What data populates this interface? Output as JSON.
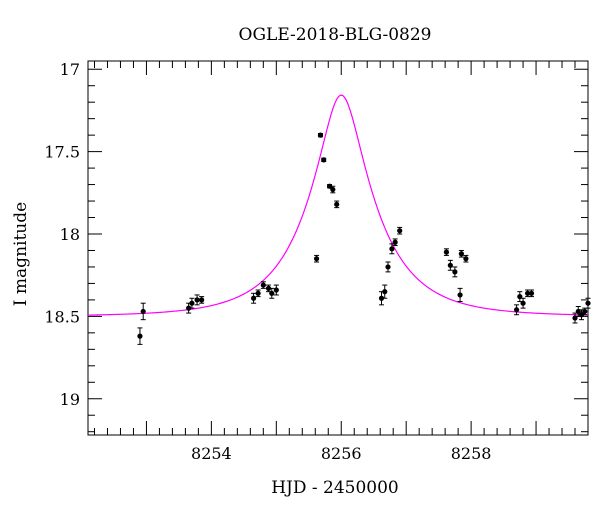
{
  "chart_data": {
    "type": "scatter",
    "title": "OGLE-2018-BLG-0829",
    "xlabel": "HJD - 2450000",
    "ylabel": "I magnitude",
    "xlim": [
      8252.1,
      8259.8
    ],
    "ylim": [
      19.22,
      16.95
    ],
    "y_inverted": true,
    "x_ticks": [
      8254,
      8256,
      8258
    ],
    "y_ticks": [
      17,
      17.5,
      18,
      18.5,
      19
    ],
    "y_tick_labels": [
      "17",
      "17.5",
      "18",
      "18.5",
      "19"
    ],
    "model_color": "#ff00ff",
    "model": {
      "t0": 8256.0,
      "u0": 0.3,
      "tE": 1.02,
      "i_base": 18.5
    },
    "points": [
      {
        "x": 8252.95,
        "y": 18.47,
        "err": 0.05
      },
      {
        "x": 8252.9,
        "y": 18.62,
        "err": 0.05
      },
      {
        "x": 8253.65,
        "y": 18.45,
        "err": 0.03
      },
      {
        "x": 8253.7,
        "y": 18.42,
        "err": 0.03
      },
      {
        "x": 8253.78,
        "y": 18.4,
        "err": 0.03
      },
      {
        "x": 8253.85,
        "y": 18.4,
        "err": 0.02
      },
      {
        "x": 8254.65,
        "y": 18.39,
        "err": 0.03
      },
      {
        "x": 8254.72,
        "y": 18.36,
        "err": 0.02
      },
      {
        "x": 8254.8,
        "y": 18.31,
        "err": 0.02
      },
      {
        "x": 8254.88,
        "y": 18.33,
        "err": 0.02
      },
      {
        "x": 8254.93,
        "y": 18.36,
        "err": 0.03
      },
      {
        "x": 8255.0,
        "y": 18.34,
        "err": 0.03
      },
      {
        "x": 8255.62,
        "y": 18.15,
        "err": 0.02
      },
      {
        "x": 8255.68,
        "y": 17.4,
        "err": 0.01
      },
      {
        "x": 8255.73,
        "y": 17.55,
        "err": 0.01
      },
      {
        "x": 8255.82,
        "y": 17.71,
        "err": 0.01
      },
      {
        "x": 8255.87,
        "y": 17.73,
        "err": 0.02
      },
      {
        "x": 8255.93,
        "y": 17.82,
        "err": 0.02
      },
      {
        "x": 8256.62,
        "y": 18.39,
        "err": 0.04
      },
      {
        "x": 8256.67,
        "y": 18.35,
        "err": 0.04
      },
      {
        "x": 8256.72,
        "y": 18.2,
        "err": 0.03
      },
      {
        "x": 8256.78,
        "y": 18.09,
        "err": 0.03
      },
      {
        "x": 8256.83,
        "y": 18.05,
        "err": 0.02
      },
      {
        "x": 8256.9,
        "y": 17.98,
        "err": 0.02
      },
      {
        "x": 8257.62,
        "y": 18.11,
        "err": 0.02
      },
      {
        "x": 8257.68,
        "y": 18.19,
        "err": 0.03
      },
      {
        "x": 8257.75,
        "y": 18.23,
        "err": 0.03
      },
      {
        "x": 8257.83,
        "y": 18.37,
        "err": 0.04
      },
      {
        "x": 8257.85,
        "y": 18.12,
        "err": 0.02
      },
      {
        "x": 8257.92,
        "y": 18.15,
        "err": 0.02
      },
      {
        "x": 8258.7,
        "y": 18.46,
        "err": 0.03
      },
      {
        "x": 8258.75,
        "y": 18.38,
        "err": 0.03
      },
      {
        "x": 8258.8,
        "y": 18.42,
        "err": 0.03
      },
      {
        "x": 8258.87,
        "y": 18.36,
        "err": 0.02
      },
      {
        "x": 8258.93,
        "y": 18.36,
        "err": 0.02
      },
      {
        "x": 8259.6,
        "y": 18.51,
        "err": 0.03
      },
      {
        "x": 8259.65,
        "y": 18.47,
        "err": 0.03
      },
      {
        "x": 8259.7,
        "y": 18.49,
        "err": 0.03
      },
      {
        "x": 8259.75,
        "y": 18.47,
        "err": 0.02
      },
      {
        "x": 8259.8,
        "y": 18.42,
        "err": 0.03
      }
    ]
  }
}
